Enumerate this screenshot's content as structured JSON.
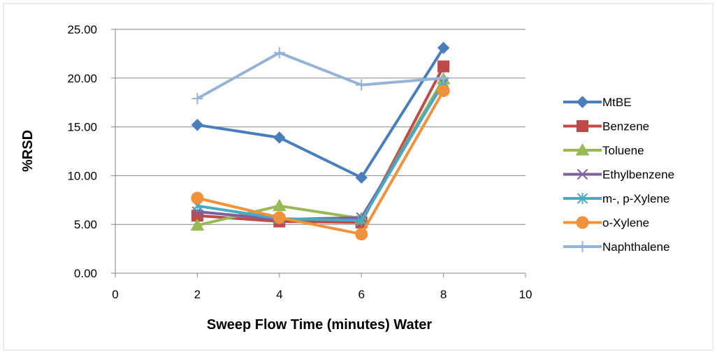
{
  "chart_data": {
    "type": "line",
    "xlabel": "Sweep Flow Time (minutes) Water",
    "ylabel": "%RSD",
    "xlim": [
      0,
      10
    ],
    "ylim": [
      0,
      25
    ],
    "x_ticks": [
      0,
      2,
      4,
      6,
      8,
      10
    ],
    "y_ticks": [
      "0.00",
      "5.00",
      "10.00",
      "15.00",
      "20.00",
      "25.00"
    ],
    "grid": "horizontal",
    "legend_position": "right",
    "x": [
      2,
      4,
      6,
      8
    ],
    "series": [
      {
        "name": "MtBE",
        "values": [
          15.2,
          13.9,
          9.8,
          23.1
        ],
        "color": "#4a7ebb",
        "marker": "diamond"
      },
      {
        "name": "Benzene",
        "values": [
          5.9,
          5.3,
          5.2,
          21.2
        ],
        "color": "#be4b48",
        "marker": "square"
      },
      {
        "name": "Toluene",
        "values": [
          4.9,
          6.9,
          5.6,
          19.9
        ],
        "color": "#98b954",
        "marker": "triangle"
      },
      {
        "name": "Ethylbenzene",
        "values": [
          6.3,
          5.5,
          5.7,
          19.5
        ],
        "color": "#7d60a0",
        "marker": "x"
      },
      {
        "name": "m-, p-Xylene",
        "values": [
          6.9,
          5.6,
          5.4,
          19.6
        ],
        "color": "#46aac4",
        "marker": "star"
      },
      {
        "name": "o-Xylene",
        "values": [
          7.7,
          5.7,
          4.0,
          18.7
        ],
        "color": "#f0913c",
        "marker": "circle"
      },
      {
        "name": "Naphthalene",
        "values": [
          17.9,
          22.6,
          19.3,
          20.0
        ],
        "color": "#95b3d7",
        "marker": "plus"
      }
    ]
  }
}
